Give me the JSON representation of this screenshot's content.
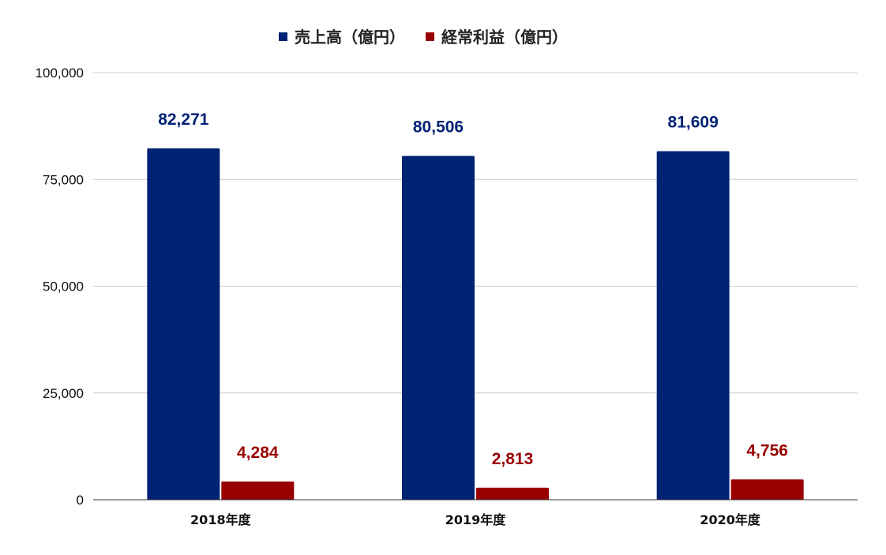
{
  "chart_data": {
    "type": "bar",
    "categories": [
      "2018年度",
      "2019年度",
      "2020年度"
    ],
    "series": [
      {
        "name": "売上高（億円）",
        "color": "#002275",
        "values": [
          82271,
          80506,
          81609
        ],
        "labels": [
          "82,271",
          "80,506",
          "81,609"
        ]
      },
      {
        "name": "経常利益（億円）",
        "color": "#990000",
        "values": [
          4284,
          2813,
          4756
        ],
        "labels": [
          "4,284",
          "2,813",
          "4,756"
        ]
      }
    ],
    "yticks": [
      {
        "value": 0,
        "label": "0"
      },
      {
        "value": 25000,
        "label": "25,000"
      },
      {
        "value": 50000,
        "label": "50,000"
      },
      {
        "value": 75000,
        "label": "75,000"
      },
      {
        "value": 100000,
        "label": "100,000"
      }
    ],
    "ylim": [
      0,
      100000
    ],
    "title": "",
    "xlabel": "",
    "ylabel": "",
    "legend_position": "top-center",
    "grid": true
  }
}
